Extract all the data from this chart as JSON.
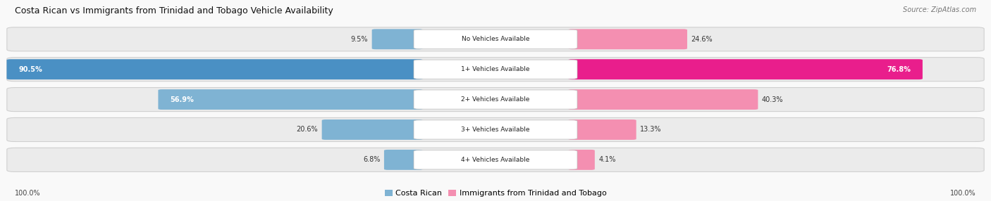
{
  "title": "Costa Rican vs Immigrants from Trinidad and Tobago Vehicle Availability",
  "source": "Source: ZipAtlas.com",
  "categories": [
    "No Vehicles Available",
    "1+ Vehicles Available",
    "2+ Vehicles Available",
    "3+ Vehicles Available",
    "4+ Vehicles Available"
  ],
  "costa_rican": [
    9.5,
    90.5,
    56.9,
    20.6,
    6.8
  ],
  "trinidad": [
    24.6,
    76.8,
    40.3,
    13.3,
    4.1
  ],
  "blue_color": "#7fb3d3",
  "blue_dark": "#4a90c4",
  "pink_color": "#f48fb1",
  "pink_dark": "#e91e8c",
  "row_bg": "#ebebeb",
  "fig_bg": "#f9f9f9",
  "axis_label_left": "100.0%",
  "axis_label_right": "100.0%",
  "legend_blue": "Costa Rican",
  "legend_pink": "Immigrants from Trinidad and Tobago",
  "max_val": 100.0
}
